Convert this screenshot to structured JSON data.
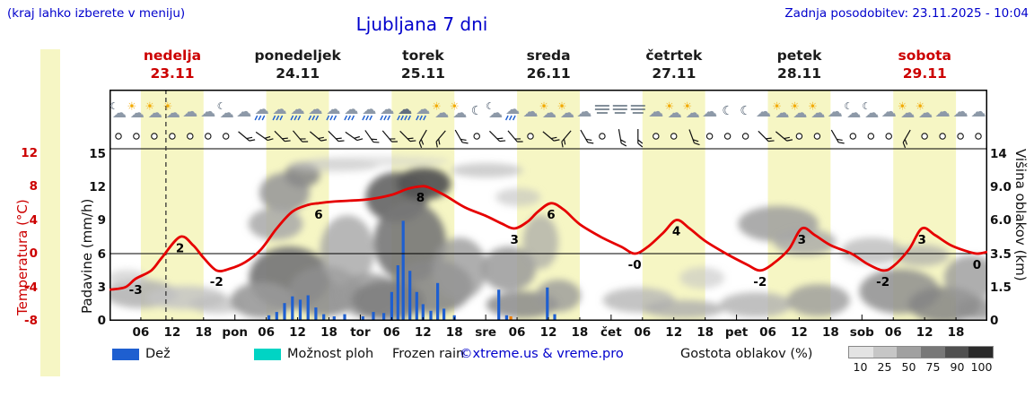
{
  "header": {
    "hint": "(kraj lahko izberete v meniju)",
    "title": "Ljubljana 7 dni",
    "updated": "Zadnja posodobitev: 23.11.2025 - 10:04"
  },
  "days": [
    {
      "name": "nedelja",
      "date": "23.11",
      "color": "#cc0000"
    },
    {
      "name": "ponedeljek",
      "date": "24.11",
      "color": "#1a1a1a"
    },
    {
      "name": "torek",
      "date": "25.11",
      "color": "#1a1a1a"
    },
    {
      "name": "sreda",
      "date": "26.11",
      "color": "#1a1a1a"
    },
    {
      "name": "četrtek",
      "date": "27.11",
      "color": "#1a1a1a"
    },
    {
      "name": "petek",
      "date": "28.11",
      "color": "#1a1a1a"
    },
    {
      "name": "sobota",
      "date": "29.11",
      "color": "#cc0000"
    }
  ],
  "axes": {
    "temp_label": "Temperatura (°C)",
    "temp_ticks": [
      12,
      8,
      4,
      0,
      -4,
      -8
    ],
    "precip_label": "Padavine (mm/h)",
    "precip_ticks": [
      15,
      12,
      9,
      6,
      3,
      0
    ],
    "cloud_label": "Višina oblakov (km)",
    "cloud_ticks": [
      "14",
      "9.0",
      "6.0",
      "3.5",
      "1.5",
      "0"
    ],
    "time_ticks": [
      "06",
      "12",
      "18"
    ],
    "day_abbrevs": [
      "pon",
      "tor",
      "sre",
      "čet",
      "pet",
      "sob"
    ]
  },
  "legend": {
    "rain_label": "Dež",
    "showers_label": "Možnost ploh",
    "frozen_label": "Frozen rain",
    "copyright": "©xtreme.us & vreme.pro",
    "cloud_density_label": "Gostota oblakov (%)",
    "scale_labels": [
      "10",
      "25",
      "50",
      "75",
      "90",
      "100"
    ]
  },
  "colors": {
    "blue_text": "#0000cc",
    "red_text": "#cc0000",
    "temp_curve": "#e60000",
    "rain_bar": "#1e5fd0",
    "frozen_bar": "#f08000",
    "shower": "#00d4c4",
    "day_band": "#f6f6c4",
    "strip": "#f6f6c4",
    "scale_colors": [
      "#e3e3e3",
      "#c6c6c6",
      "#a0a0a0",
      "#787878",
      "#505050",
      "#2a2a2a"
    ]
  },
  "chart_data": {
    "type": "meteogram",
    "location": "Ljubljana",
    "hours_total": 168,
    "now_hour": 10.8,
    "day_band_hours": [
      6,
      18
    ],
    "temp_axis_range": [
      -8,
      12.5
    ],
    "precip_axis_range": [
      0,
      15.5
    ],
    "temp_series": [
      [
        0,
        -4.3
      ],
      [
        3,
        -4
      ],
      [
        5,
        -3
      ],
      [
        8,
        -2
      ],
      [
        10,
        -0.5
      ],
      [
        13.5,
        2
      ],
      [
        16,
        1
      ],
      [
        18,
        -0.5
      ],
      [
        20.5,
        -2
      ],
      [
        23,
        -1.8
      ],
      [
        26,
        -1
      ],
      [
        29,
        0.5
      ],
      [
        32,
        3
      ],
      [
        35,
        5
      ],
      [
        38,
        5.8
      ],
      [
        40,
        6
      ],
      [
        43,
        6.2
      ],
      [
        46,
        6.3
      ],
      [
        50,
        6.5
      ],
      [
        54,
        7
      ],
      [
        57,
        7.7
      ],
      [
        59.5,
        8
      ],
      [
        61,
        7.9
      ],
      [
        64,
        7
      ],
      [
        68,
        5.5
      ],
      [
        72,
        4.5
      ],
      [
        75,
        3.6
      ],
      [
        77.5,
        3
      ],
      [
        80,
        3.8
      ],
      [
        82,
        5
      ],
      [
        84.5,
        6
      ],
      [
        87,
        5.2
      ],
      [
        90,
        3.5
      ],
      [
        94,
        2
      ],
      [
        98,
        0.8
      ],
      [
        100.5,
        0
      ],
      [
        103,
        0.8
      ],
      [
        106,
        2.5
      ],
      [
        108.5,
        4
      ],
      [
        111,
        3
      ],
      [
        114,
        1.5
      ],
      [
        118,
        0
      ],
      [
        122,
        -1.3
      ],
      [
        124.5,
        -2
      ],
      [
        127,
        -1.2
      ],
      [
        130,
        0.5
      ],
      [
        132.5,
        3
      ],
      [
        135,
        2.2
      ],
      [
        138,
        1
      ],
      [
        142,
        0
      ],
      [
        145,
        -1.2
      ],
      [
        148,
        -2
      ],
      [
        150,
        -1.5
      ],
      [
        153,
        0.5
      ],
      [
        155.5,
        3
      ],
      [
        158,
        2.2
      ],
      [
        161,
        1
      ],
      [
        164,
        0.3
      ],
      [
        166,
        0
      ],
      [
        168,
        0.2
      ]
    ],
    "temp_point_labels": [
      {
        "h": 5,
        "t": "-3"
      },
      {
        "h": 13.5,
        "t": "2"
      },
      {
        "h": 20.5,
        "t": "-2"
      },
      {
        "h": 40,
        "t": "6"
      },
      {
        "h": 59.5,
        "t": "8"
      },
      {
        "h": 77.5,
        "t": "3"
      },
      {
        "h": 84.5,
        "t": "6"
      },
      {
        "h": 100.5,
        "t": "-0"
      },
      {
        "h": 108.5,
        "t": "4"
      },
      {
        "h": 124.5,
        "t": "-2"
      },
      {
        "h": 132.5,
        "t": "3"
      },
      {
        "h": 148,
        "t": "-2"
      },
      {
        "h": 155.5,
        "t": "3"
      },
      {
        "h": 166,
        "t": "0"
      }
    ],
    "precip_bars": [
      {
        "h": 30.5,
        "mm": 0.5
      },
      {
        "h": 32,
        "mm": 0.8
      },
      {
        "h": 33.5,
        "mm": 1.6
      },
      {
        "h": 35,
        "mm": 2.2
      },
      {
        "h": 36.5,
        "mm": 1.9
      },
      {
        "h": 38,
        "mm": 2.3
      },
      {
        "h": 39.5,
        "mm": 1.2
      },
      {
        "h": 41,
        "mm": 0.6
      },
      {
        "h": 43,
        "mm": 0.4
      },
      {
        "h": 45,
        "mm": 0.6
      },
      {
        "h": 48.5,
        "mm": 0.4
      },
      {
        "h": 50.5,
        "mm": 0.8
      },
      {
        "h": 52.5,
        "mm": 0.7
      },
      {
        "h": 54,
        "mm": 2.6
      },
      {
        "h": 55.2,
        "mm": 5
      },
      {
        "h": 56.2,
        "mm": 9
      },
      {
        "h": 57.5,
        "mm": 4.5
      },
      {
        "h": 58.8,
        "mm": 2.6
      },
      {
        "h": 60,
        "mm": 1.5
      },
      {
        "h": 61.5,
        "mm": 0.9
      },
      {
        "h": 62.8,
        "mm": 3.4
      },
      {
        "h": 64,
        "mm": 1.1
      },
      {
        "h": 66,
        "mm": 0.5
      },
      {
        "h": 74.5,
        "mm": 2.8
      },
      {
        "h": 76,
        "mm": 0.5
      },
      {
        "h": 76.8,
        "mm": 0.4,
        "type": "frozen"
      },
      {
        "h": 83.8,
        "mm": 3
      },
      {
        "h": 85.2,
        "mm": 0.6
      }
    ],
    "weather_icons": [
      "moon-cloud",
      "sun-cloud",
      "sun-cloud",
      "sun-cloud",
      "cloud",
      "cloud",
      "moon-cloud",
      "cloud",
      "rain",
      "rain",
      "rain",
      "rain",
      "rain",
      "rain",
      "rain",
      "rain",
      "heavy-rain",
      "rain",
      "sun-cloud",
      "sun-cloud",
      "moon",
      "moon-cloud",
      "rain",
      "cloud",
      "sun-cloud",
      "sun-cloud",
      "cloud",
      "fog",
      "fog",
      "fog",
      "cloud",
      "sun-cloud",
      "sun-cloud",
      "cloud",
      "moon",
      "moon",
      "cloud",
      "sun-cloud",
      "sun-cloud",
      "sun-cloud",
      "cloud",
      "moon-cloud",
      "moon-cloud",
      "cloud",
      "sun-cloud",
      "sun-cloud",
      "cloud",
      "cloud",
      "cloud"
    ],
    "wind_symbols": [
      0,
      0,
      0,
      0,
      0,
      0,
      0,
      40,
      35,
      45,
      50,
      40,
      45,
      35,
      55,
      50,
      45,
      120,
      130,
      60,
      0,
      45,
      50,
      0,
      40,
      130,
      60,
      0,
      80,
      90,
      0,
      0,
      70,
      0,
      0,
      0,
      45,
      40,
      0,
      0,
      60,
      0,
      0,
      0,
      120,
      0,
      0,
      0,
      0
    ],
    "cloud_blobs": [
      [
        6,
        0.156,
        6.9,
        0.083,
        176,
        0.85
      ],
      [
        14.6,
        0.135,
        7.7,
        0.068,
        196,
        0.85
      ],
      [
        3.4,
        0.25,
        3.8,
        0.047,
        204,
        0.7
      ],
      [
        20.6,
        0.094,
        5.2,
        0.052,
        188,
        0.7
      ],
      [
        33.5,
        0.745,
        4.8,
        0.115,
        154,
        0.9
      ],
      [
        36.9,
        0.849,
        3.4,
        0.073,
        138,
        0.9
      ],
      [
        31.8,
        0.563,
        5.2,
        0.094,
        168,
        0.85
      ],
      [
        34.4,
        0.25,
        7.7,
        0.182,
        122,
        0.95
      ],
      [
        41.2,
        0.172,
        6.9,
        0.146,
        142,
        0.9
      ],
      [
        29.2,
        0.12,
        6.0,
        0.104,
        153,
        0.9
      ],
      [
        45.5,
        0.406,
        5.2,
        0.208,
        165,
        0.8
      ],
      [
        49.8,
        0.146,
        6.0,
        0.13,
        154,
        0.85
      ],
      [
        55,
        0.719,
        6.0,
        0.146,
        106,
        0.95
      ],
      [
        60.1,
        0.797,
        5.2,
        0.094,
        85,
        0.95
      ],
      [
        57.5,
        0.458,
        6.9,
        0.234,
        119,
        0.9
      ],
      [
        61.8,
        0.198,
        7.7,
        0.156,
        136,
        0.9
      ],
      [
        53.3,
        0.12,
        6.9,
        0.115,
        128,
        0.9
      ],
      [
        67,
        0.302,
        5.2,
        0.182,
        154,
        0.8
      ],
      [
        72.2,
        0.875,
        6.9,
        0.042,
        187,
        0.7
      ],
      [
        42.9,
        0.901,
        8.6,
        0.036,
        197,
        0.6
      ],
      [
        51.5,
        0.927,
        13.7,
        0.031,
        204,
        0.5
      ],
      [
        76.4,
        0.302,
        5.2,
        0.13,
        154,
        0.85
      ],
      [
        79,
        0.094,
        6.9,
        0.078,
        138,
        0.85
      ],
      [
        82.5,
        0.458,
        3.4,
        0.156,
        165,
        0.7
      ],
      [
        85.9,
        0.146,
        4.3,
        0.094,
        153,
        0.8
      ],
      [
        78.2,
        0.719,
        4.3,
        0.052,
        192,
        0.6
      ],
      [
        101.3,
        0.12,
        6.9,
        0.073,
        181,
        0.8
      ],
      [
        109.9,
        0.068,
        7.7,
        0.052,
        173,
        0.8
      ],
      [
        113.4,
        0.25,
        4.3,
        0.063,
        197,
        0.6
      ],
      [
        128,
        0.563,
        7.7,
        0.104,
        158,
        0.85
      ],
      [
        133.1,
        0.458,
        6.0,
        0.078,
        168,
        0.8
      ],
      [
        123.7,
        0.094,
        6.9,
        0.073,
        176,
        0.8
      ],
      [
        135.7,
        0.12,
        6.0,
        0.094,
        154,
        0.8
      ],
      [
        146,
        0.406,
        6.0,
        0.078,
        178,
        0.7
      ],
      [
        151.2,
        0.172,
        7.7,
        0.13,
        142,
        0.85
      ],
      [
        159.8,
        0.094,
        6.9,
        0.104,
        133,
        0.85
      ],
      [
        164.9,
        0.25,
        5.2,
        0.13,
        154,
        0.8
      ],
      [
        155.5,
        0.38,
        5.2,
        0.063,
        170,
        0.7
      ],
      [
        166.3,
        0.068,
        4.3,
        0.063,
        144,
        0.8
      ]
    ]
  }
}
